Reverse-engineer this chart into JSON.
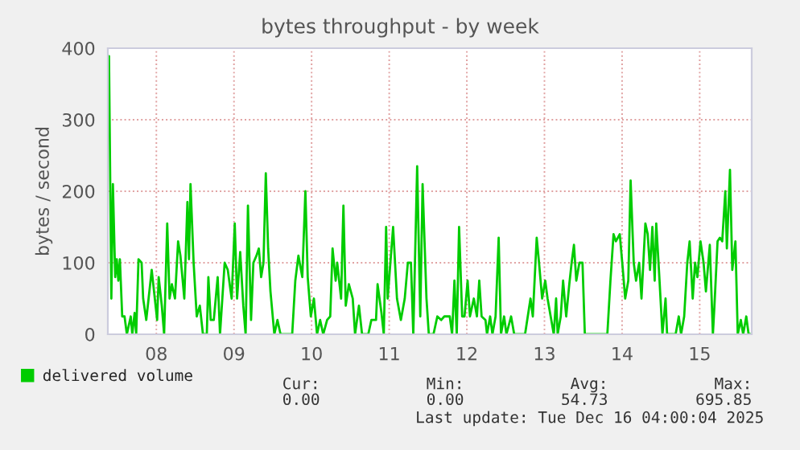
{
  "chart_data": {
    "type": "line",
    "title": "bytes throughput - by week",
    "ylabel": "bytes / second",
    "xlim": [
      7.875,
      16.17
    ],
    "ylim": [
      0,
      400
    ],
    "yticks": [
      0,
      100,
      200,
      300,
      400
    ],
    "xticks": [
      {
        "value": 8.5,
        "label": "08"
      },
      {
        "value": 9.5,
        "label": "09"
      },
      {
        "value": 10.5,
        "label": "10"
      },
      {
        "value": 11.5,
        "label": "11"
      },
      {
        "value": 12.5,
        "label": "12"
      },
      {
        "value": 13.5,
        "label": "13"
      },
      {
        "value": 14.5,
        "label": "14"
      },
      {
        "value": 15.5,
        "label": "15"
      }
    ],
    "grid": true,
    "legend": "bottom",
    "marker": "none",
    "line_style": "solid",
    "series": [
      {
        "name": "delivered volume",
        "color": "#00cc00",
        "x": [
          7.89,
          7.92,
          7.94,
          7.97,
          7.99,
          8.01,
          8.03,
          8.06,
          8.09,
          8.12,
          8.17,
          8.19,
          8.22,
          8.24,
          8.27,
          8.31,
          8.33,
          8.37,
          8.4,
          8.44,
          8.47,
          8.51,
          8.53,
          8.57,
          8.6,
          8.64,
          8.67,
          8.7,
          8.74,
          8.78,
          8.81,
          8.86,
          8.9,
          8.92,
          8.94,
          8.98,
          9.02,
          9.06,
          9.1,
          9.15,
          9.17,
          9.2,
          9.24,
          9.29,
          9.32,
          9.38,
          9.42,
          9.47,
          9.51,
          9.54,
          9.58,
          9.62,
          9.65,
          9.68,
          9.72,
          9.75,
          9.79,
          9.82,
          9.85,
          9.88,
          9.91,
          9.94,
          9.97,
          10.02,
          10.06,
          10.1,
          10.25,
          10.29,
          10.33,
          10.38,
          10.42,
          10.45,
          10.49,
          10.53,
          10.57,
          10.61,
          10.65,
          10.7,
          10.74,
          10.77,
          10.81,
          10.83,
          10.88,
          10.91,
          10.94,
          10.98,
          11.03,
          11.06,
          11.11,
          11.15,
          11.23,
          11.27,
          11.33,
          11.35,
          11.4,
          11.43,
          11.46,
          11.48,
          11.55,
          11.6,
          11.65,
          11.7,
          11.74,
          11.78,
          11.81,
          11.86,
          11.9,
          11.93,
          11.98,
          12.01,
          12.07,
          12.12,
          12.17,
          12.21,
          12.28,
          12.31,
          12.34,
          12.37,
          12.4,
          12.44,
          12.47,
          12.51,
          12.54,
          12.59,
          12.63,
          12.66,
          12.69,
          12.74,
          12.76,
          12.8,
          12.83,
          12.87,
          12.91,
          12.94,
          12.98,
          13.01,
          13.07,
          13.11,
          13.25,
          13.32,
          13.35,
          13.4,
          13.43,
          13.47,
          13.51,
          13.54,
          13.58,
          13.62,
          13.65,
          13.67,
          13.71,
          13.74,
          13.78,
          13.82,
          13.85,
          13.88,
          13.91,
          13.95,
          13.99,
          14.02,
          14.31,
          14.35,
          14.39,
          14.42,
          14.47,
          14.51,
          14.54,
          14.58,
          14.61,
          14.65,
          14.68,
          14.72,
          14.75,
          14.8,
          14.83,
          14.86,
          14.89,
          14.92,
          14.94,
          14.98,
          15.02,
          15.06,
          15.08,
          15.19,
          15.23,
          15.26,
          15.3,
          15.34,
          15.37,
          15.41,
          15.44,
          15.47,
          15.51,
          15.55,
          15.58,
          15.63,
          15.67,
          15.69,
          15.73,
          15.76,
          15.79,
          15.83,
          15.85,
          15.89,
          15.92,
          15.96,
          15.99,
          16.03,
          16.06,
          16.1,
          16.13,
          16.17
        ],
        "values": [
          389,
          50,
          210,
          80,
          105,
          75,
          105,
          25,
          25,
          0,
          25,
          0,
          30,
          0,
          105,
          100,
          50,
          20,
          50,
          90,
          60,
          20,
          80,
          40,
          0,
          155,
          50,
          70,
          50,
          130,
          110,
          50,
          185,
          105,
          210,
          100,
          25,
          40,
          0,
          0,
          80,
          20,
          20,
          80,
          0,
          100,
          90,
          50,
          155,
          50,
          115,
          40,
          0,
          180,
          20,
          100,
          110,
          120,
          80,
          100,
          225,
          120,
          60,
          0,
          20,
          0,
          0,
          75,
          110,
          80,
          200,
          80,
          25,
          50,
          0,
          20,
          0,
          20,
          25,
          120,
          75,
          100,
          50,
          180,
          40,
          70,
          50,
          0,
          40,
          0,
          0,
          20,
          20,
          70,
          30,
          0,
          150,
          50,
          150,
          50,
          20,
          50,
          100,
          100,
          0,
          235,
          25,
          210,
          50,
          0,
          0,
          25,
          20,
          25,
          25,
          0,
          75,
          0,
          150,
          25,
          25,
          75,
          25,
          50,
          25,
          75,
          25,
          20,
          0,
          25,
          0,
          25,
          135,
          0,
          25,
          0,
          25,
          0,
          0,
          50,
          25,
          135,
          100,
          50,
          75,
          50,
          25,
          0,
          50,
          0,
          25,
          75,
          25,
          70,
          100,
          125,
          75,
          100,
          100,
          0,
          0,
          75,
          140,
          130,
          140,
          90,
          50,
          75,
          215,
          100,
          75,
          100,
          50,
          155,
          140,
          90,
          150,
          75,
          155,
          80,
          0,
          50,
          0,
          0,
          25,
          0,
          25,
          100,
          130,
          50,
          100,
          80,
          130,
          100,
          60,
          125,
          0,
          40,
          130,
          135,
          130,
          200,
          120,
          230,
          90,
          130,
          0,
          20,
          0,
          25,
          0,
          0
        ]
      }
    ],
    "annotations": [
      "Cur:",
      "Min:",
      "Avg:",
      "Max:",
      "0.00",
      "0.00",
      "54.73",
      "695.85",
      "Last update: Tue Dec 16 04:00:04 2025"
    ]
  }
}
